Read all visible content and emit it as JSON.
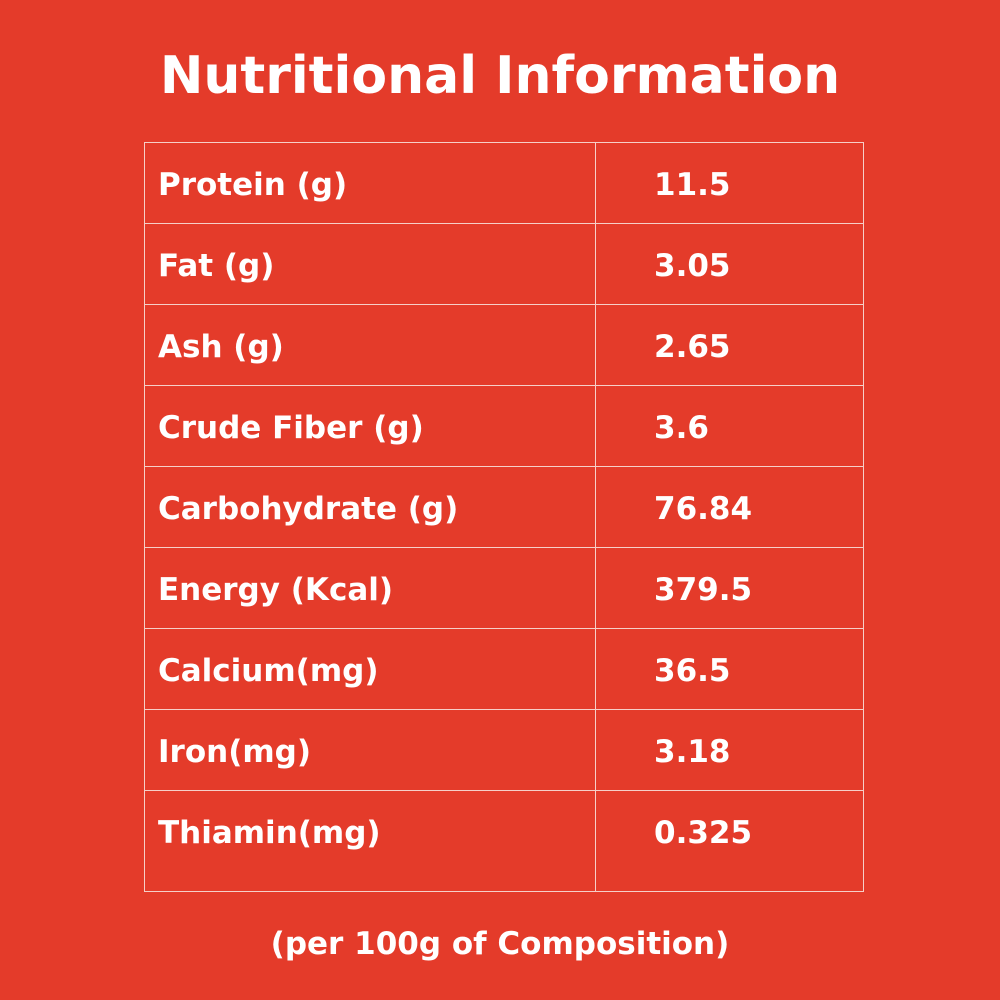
{
  "colors": {
    "background": "#e43b2a",
    "text": "#ffffff",
    "grid_line": "#f6cfc8"
  },
  "title": "Nutritional Information",
  "table": {
    "rows": [
      {
        "label": "Protein (g)",
        "value": "11.5"
      },
      {
        "label": "Fat (g)",
        "value": "3.05"
      },
      {
        "label": "Ash (g)",
        "value": "2.65"
      },
      {
        "label": "Crude Fiber (g)",
        "value": "3.6"
      },
      {
        "label": "Carbohydrate (g)",
        "value": "76.84"
      },
      {
        "label": "Energy (Kcal)",
        "value": "379.5"
      },
      {
        "label": "Calcium(mg)",
        "value": "36.5"
      },
      {
        "label": "Iron(mg)",
        "value": "3.18"
      },
      {
        "label": "Thiamin(mg)",
        "value": "0.325"
      }
    ]
  },
  "footnote": "(per 100g of Composition)"
}
